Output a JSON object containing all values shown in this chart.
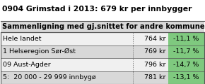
{
  "title": "0904 Grimstad i 2013: 679 kr per innbygger",
  "subtitle": "Sammenligning med gj.snittet for andre kommuner",
  "rows": [
    {
      "label": "Hele landet",
      "value": "764 kr",
      "pct": "-11,1 %"
    },
    {
      "label": "1 Helseregion Sør-Øst",
      "value": "769 kr",
      "pct": "-11,7 %"
    },
    {
      "label": "09 Aust-Agder",
      "value": "796 kr",
      "pct": "-14,7 %"
    },
    {
      "label": "5:  20 000 - 29 999 innbygø",
      "value": "781 kr",
      "pct": "-13,1 %"
    }
  ],
  "bg_title": "#ffffff",
  "bg_subtitle": "#d8d8d8",
  "row_bg_white": "#f0f0f0",
  "row_bg_gray": "#d8d8d8",
  "pct_bg": "#7fc97f",
  "border_color": "#555555",
  "text_color": "#000000",
  "title_fontsize": 7.8,
  "subtitle_fontsize": 7.2,
  "row_fontsize": 6.8,
  "fig_w": 2.9,
  "fig_h": 1.2,
  "dpi": 100
}
